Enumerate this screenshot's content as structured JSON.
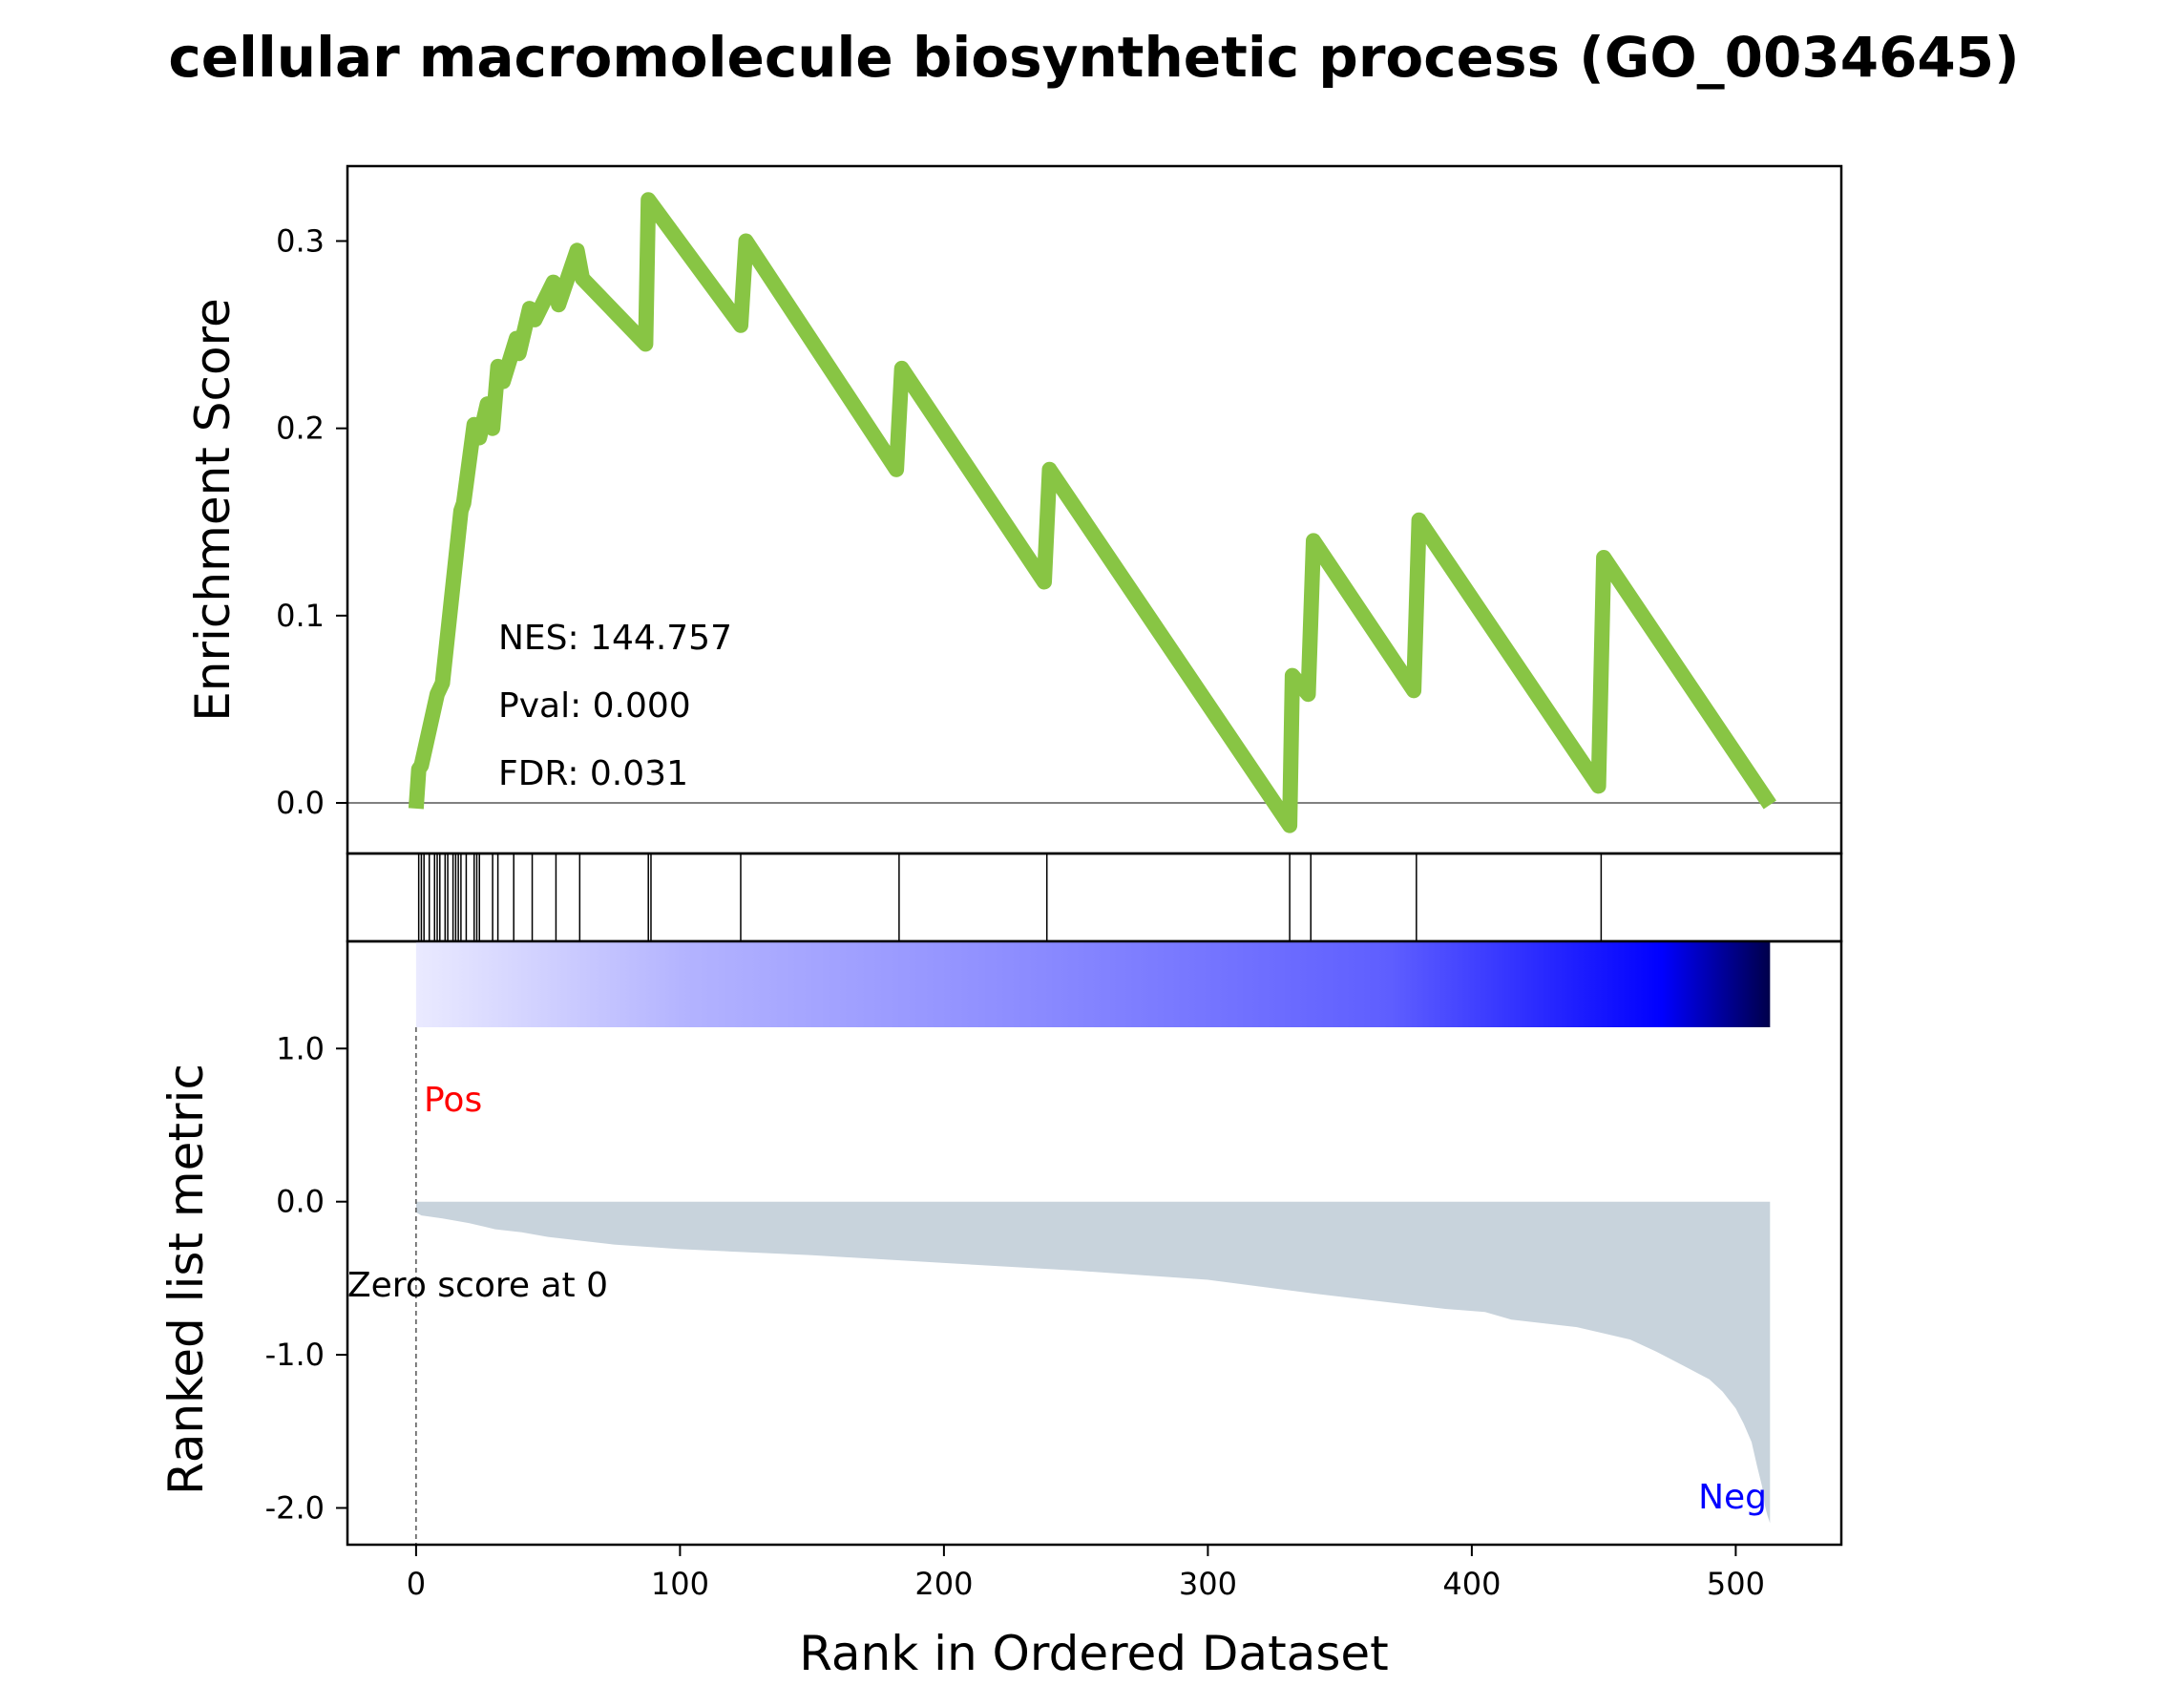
{
  "chart_data": {
    "type": "line",
    "title": "cellular macromolecule biosynthetic process (GO_0034645)",
    "xlabel": "Rank in Ordered Dataset",
    "xlim": [
      -26,
      540
    ],
    "x_ticks": [
      0,
      100,
      200,
      300,
      400,
      500
    ],
    "x_tick_labels": [
      "0",
      "100",
      "200",
      "300",
      "400",
      "500"
    ],
    "enrichment": {
      "ylabel": "Enrichment Score",
      "ylim": [
        -0.027,
        0.34
      ],
      "y_ticks": [
        0.0,
        0.1,
        0.2,
        0.3
      ],
      "y_tick_labels": [
        "0.0",
        "0.1",
        "0.2",
        "0.3"
      ],
      "line_color": "#88c544",
      "zero_line_color": "#808080",
      "x": [
        0,
        1,
        2,
        8,
        10,
        17,
        18,
        22,
        24,
        27,
        29,
        31,
        33,
        38,
        39,
        43,
        45,
        52,
        54,
        61,
        63,
        87,
        88,
        123,
        125,
        182,
        184,
        238,
        240,
        331,
        332,
        338,
        340,
        378,
        380,
        448,
        450,
        513
      ],
      "y": [
        -0.003,
        0.018,
        0.02,
        0.058,
        0.064,
        0.156,
        0.16,
        0.202,
        0.195,
        0.213,
        0.2,
        0.233,
        0.225,
        0.248,
        0.24,
        0.264,
        0.258,
        0.278,
        0.266,
        0.295,
        0.28,
        0.245,
        0.322,
        0.255,
        0.3,
        0.178,
        0.232,
        0.118,
        0.178,
        -0.012,
        0.068,
        0.058,
        0.14,
        0.06,
        0.151,
        0.009,
        0.131,
        -0.001
      ],
      "stats": {
        "nes": "NES: 144.757",
        "pval": "Pval: 0.000",
        "fdr": "FDR: 0.031"
      }
    },
    "hits": {
      "positions": [
        1,
        2,
        3,
        5,
        7,
        8,
        9,
        11,
        12,
        14,
        15,
        16,
        17,
        19,
        22,
        23,
        24,
        29,
        31,
        37,
        44,
        53,
        62,
        88,
        89,
        123,
        183,
        239,
        331,
        339,
        379,
        449
      ],
      "line_color": "#000000"
    },
    "ranked": {
      "ylabel": "Ranked list metric",
      "ylim": [
        -2.24,
        1.7
      ],
      "y_ticks": [
        1.0,
        0.0,
        -1.0,
        -2.0
      ],
      "y_tick_labels": [
        "1.0",
        "0.0",
        "-1.0",
        "-2.0"
      ],
      "fill_color": "#c8d3dc",
      "n": 513,
      "x": [
        0,
        2,
        10,
        20,
        30,
        40,
        50,
        75,
        100,
        150,
        200,
        250,
        300,
        340,
        370,
        390,
        405,
        415,
        440,
        460,
        470,
        480,
        490,
        495,
        500,
        503,
        506,
        508,
        510,
        511,
        512,
        513
      ],
      "y": [
        -0.07,
        -0.09,
        -0.11,
        -0.14,
        -0.18,
        -0.2,
        -0.23,
        -0.28,
        -0.31,
        -0.35,
        -0.4,
        -0.45,
        -0.51,
        -0.6,
        -0.66,
        -0.7,
        -0.72,
        -0.77,
        -0.82,
        -0.9,
        -0.98,
        -1.07,
        -1.16,
        -1.24,
        -1.35,
        -1.45,
        -1.57,
        -1.72,
        -1.86,
        -1.98,
        -2.05,
        -2.1
      ],
      "zero_label": "Zero score at 0",
      "pos_label": "Pos",
      "neg_label": "Neg",
      "pos_color": "#ff0000",
      "neg_color": "#0000ff",
      "gradient_colors": [
        "#eaeaff",
        "#b3b3ff",
        "#8c8cff",
        "#5e5eff",
        "#0000ff",
        "#00004a"
      ]
    }
  }
}
